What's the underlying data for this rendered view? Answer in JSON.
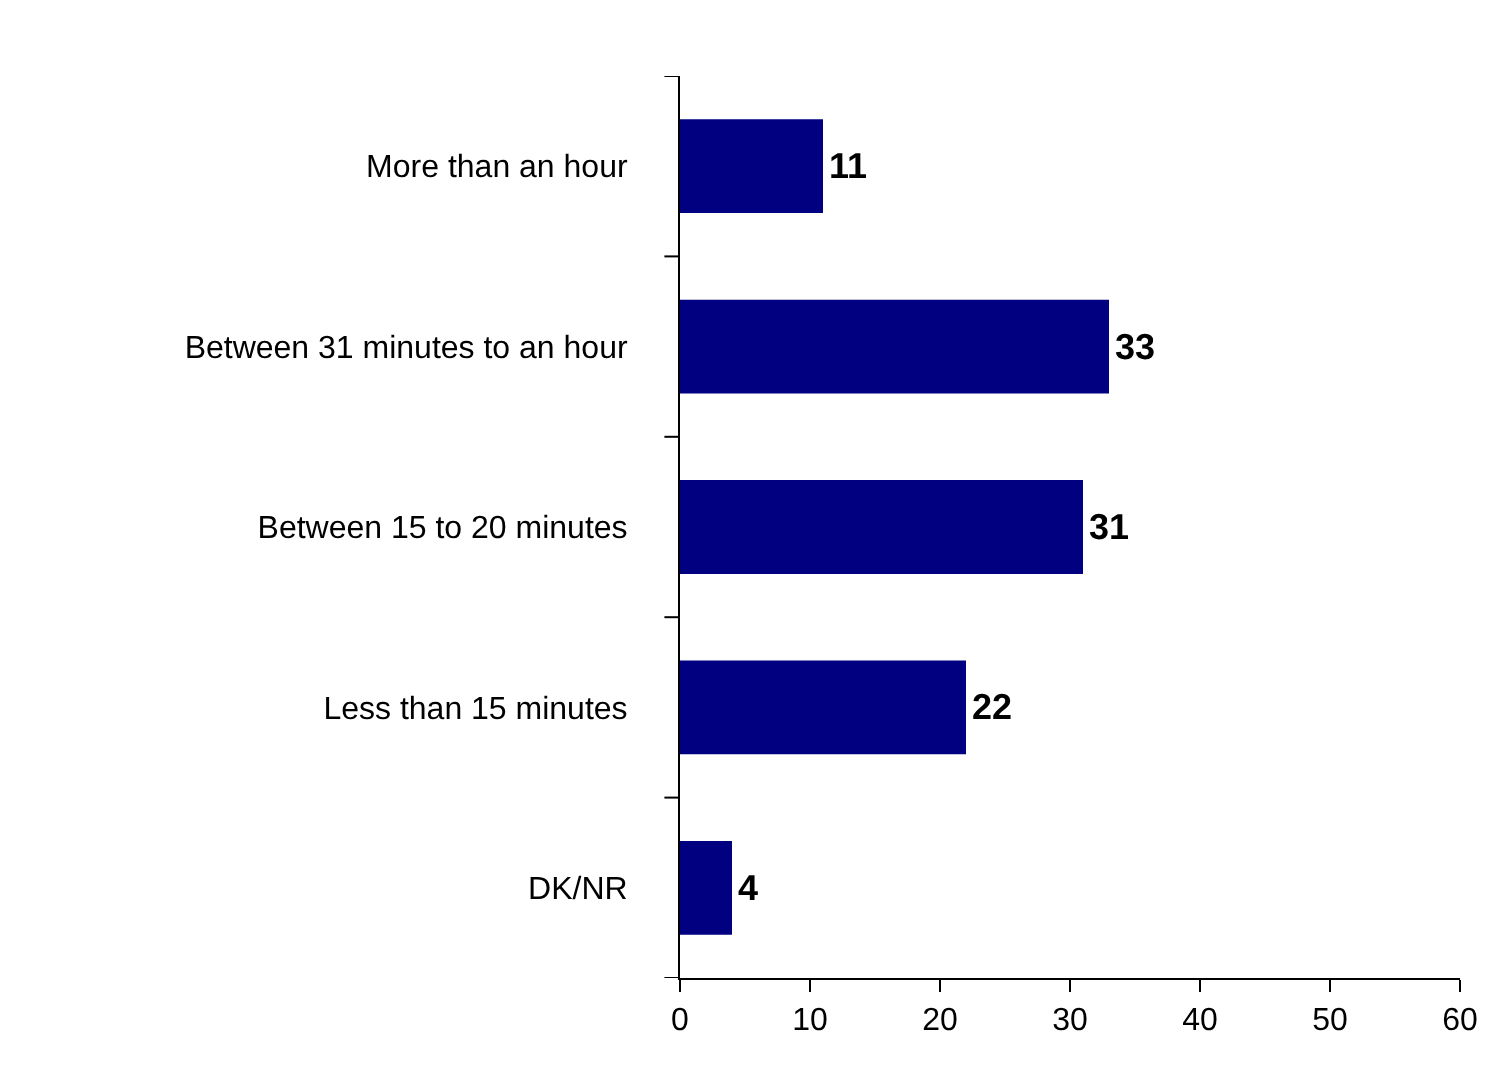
{
  "chart_data": {
    "type": "bar",
    "orientation": "horizontal",
    "categories": [
      "More than an hour",
      "Between 31 minutes to an hour",
      "Between 15 to 20 minutes",
      "Less than 15 minutes",
      "DK/NR"
    ],
    "values": [
      11,
      33,
      31,
      22,
      4
    ],
    "color": "#000080",
    "xlim": [
      0,
      60
    ],
    "xticks": [
      0,
      10,
      20,
      30,
      40,
      50,
      60
    ],
    "data_labels": true
  }
}
